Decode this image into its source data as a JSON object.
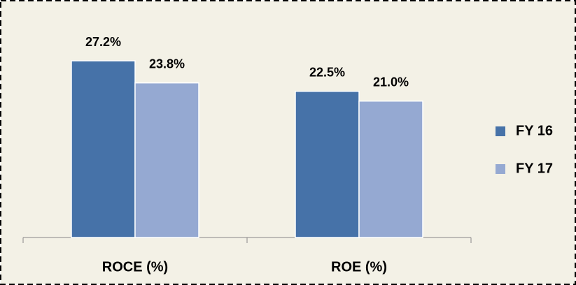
{
  "chart_data": {
    "type": "bar",
    "categories": [
      "ROCE (%)",
      "ROE (%)"
    ],
    "series": [
      {
        "name": "FY 16",
        "color": "#4672a8",
        "values": [
          27.2,
          22.5
        ],
        "value_labels": [
          "27.2%",
          "22.5%"
        ]
      },
      {
        "name": "FY 17",
        "color": "#95a9d2",
        "values": [
          23.8,
          21.0
        ],
        "value_labels": [
          "23.8%",
          "21.0%"
        ]
      }
    ],
    "ylim": [
      0,
      30
    ],
    "legend": "right"
  }
}
